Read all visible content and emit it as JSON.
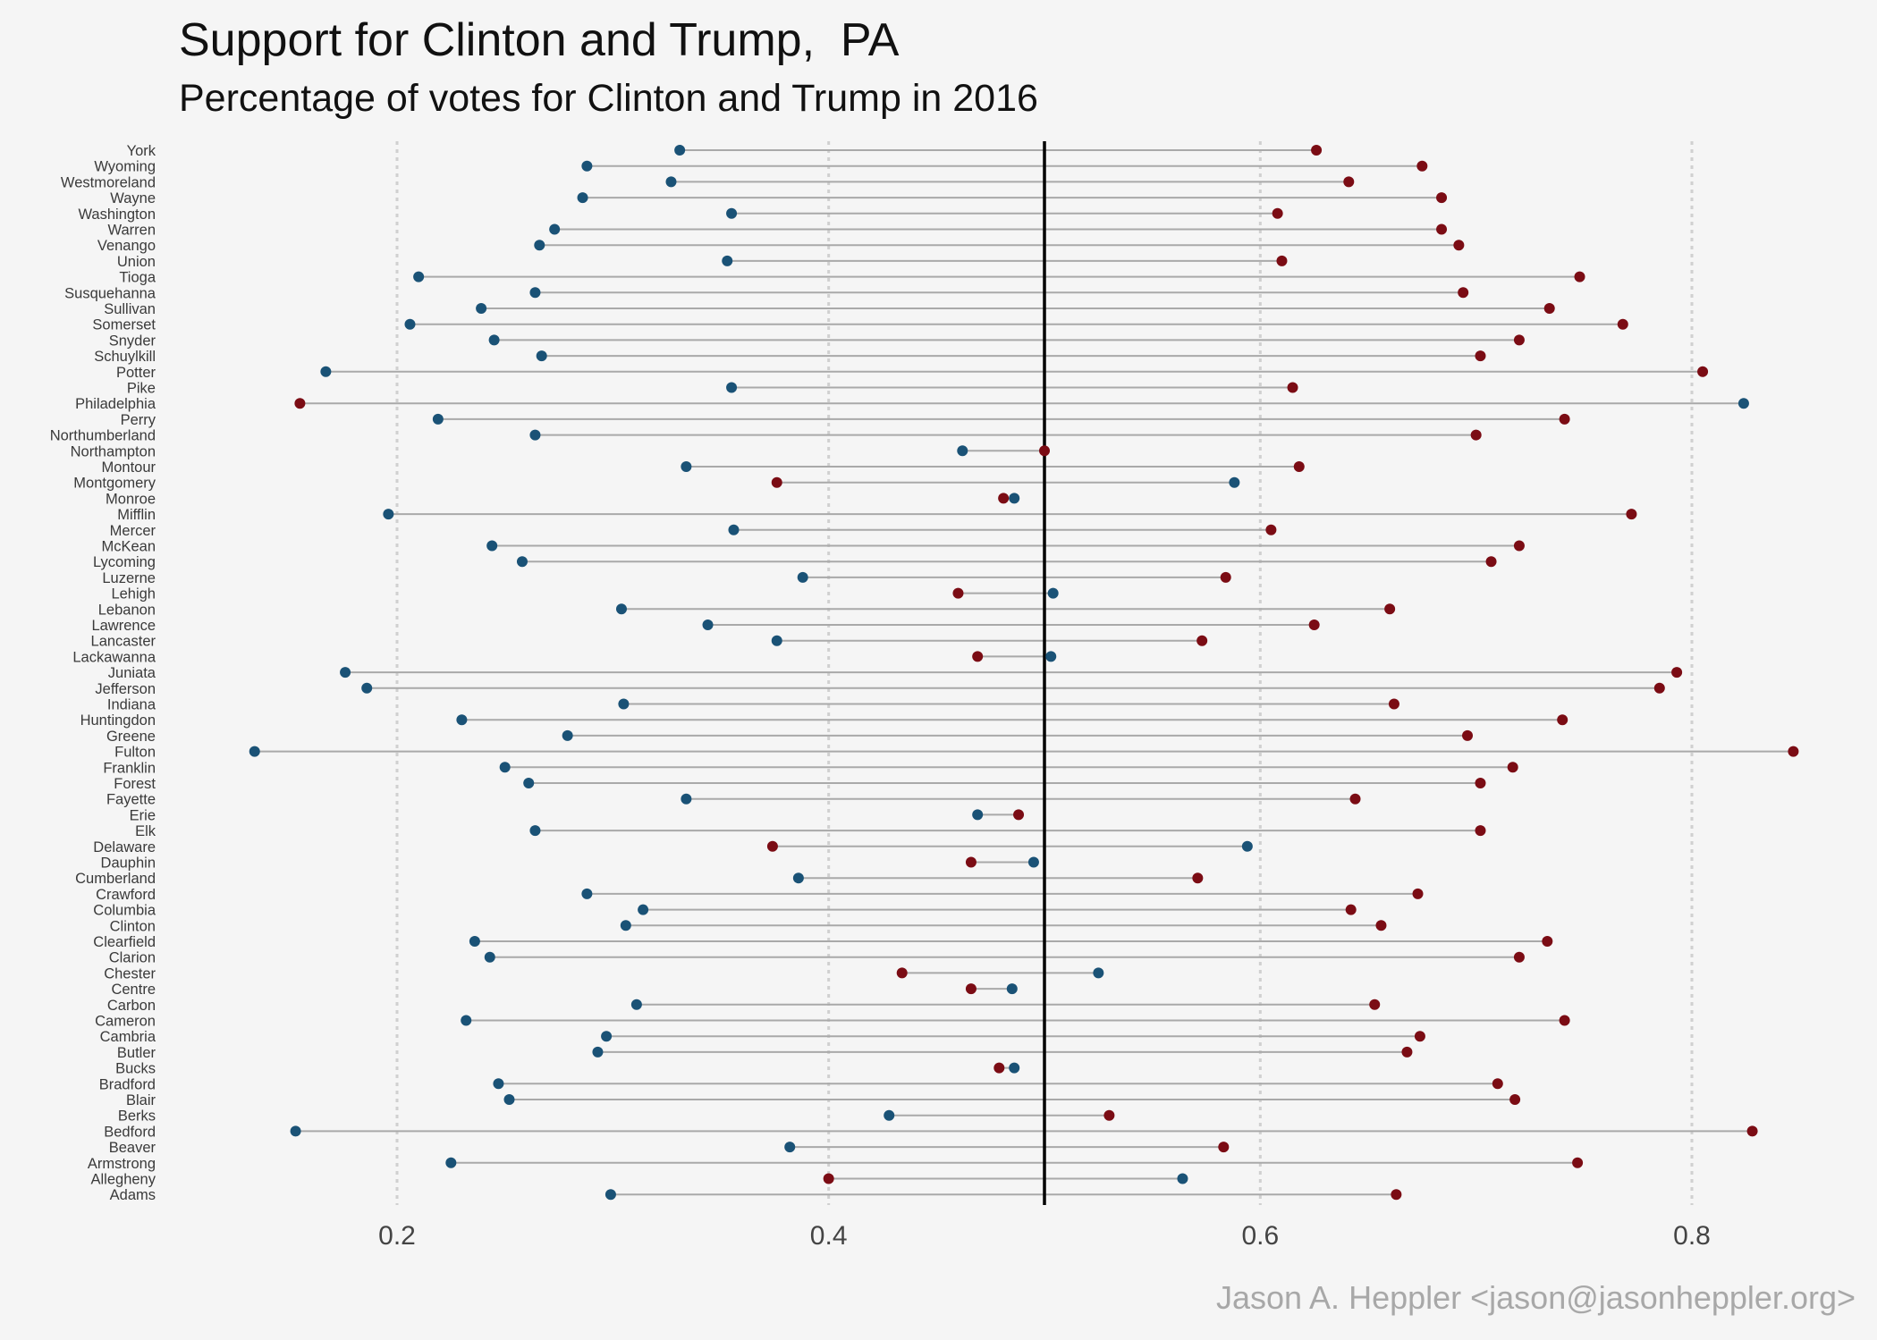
{
  "colors": {
    "background": "#f5f5f5",
    "clinton": "#1a5276",
    "trump": "#7b0c14",
    "segment": "#a9a9a9",
    "gridline": "#d0d0d0",
    "midline": "#000000"
  },
  "caption": "Jason A. Heppler <jason@jasonheppler.org>",
  "chart_data": {
    "type": "dumbbell",
    "title": "Support for Clinton and Trump,  PA",
    "subtitle": "Percentage of votes for Clinton and Trump in 2016",
    "xlabel": "",
    "ylabel": "",
    "xlim": [
      0.1,
      0.86
    ],
    "xticks": [
      {
        "value": 0.2,
        "label": "0.2"
      },
      {
        "value": 0.4,
        "label": "0.4"
      },
      {
        "value": 0.6,
        "label": "0.6"
      },
      {
        "value": 0.8,
        "label": "0.8"
      }
    ],
    "reference_line": 0.5,
    "grid": "vertical dotted at major ticks",
    "legend": "none",
    "series": [
      {
        "key": "clinton",
        "color": "#1a5276"
      },
      {
        "key": "trump",
        "color": "#7b0c14"
      }
    ],
    "counties": [
      {
        "name": "York",
        "clinton": 0.331,
        "trump": 0.626
      },
      {
        "name": "Wyoming",
        "clinton": 0.288,
        "trump": 0.675
      },
      {
        "name": "Westmoreland",
        "clinton": 0.327,
        "trump": 0.641
      },
      {
        "name": "Wayne",
        "clinton": 0.286,
        "trump": 0.684
      },
      {
        "name": "Washington",
        "clinton": 0.355,
        "trump": 0.608
      },
      {
        "name": "Warren",
        "clinton": 0.273,
        "trump": 0.684
      },
      {
        "name": "Venango",
        "clinton": 0.266,
        "trump": 0.692
      },
      {
        "name": "Union",
        "clinton": 0.353,
        "trump": 0.61
      },
      {
        "name": "Tioga",
        "clinton": 0.21,
        "trump": 0.748
      },
      {
        "name": "Susquehanna",
        "clinton": 0.264,
        "trump": 0.694
      },
      {
        "name": "Sullivan",
        "clinton": 0.239,
        "trump": 0.734
      },
      {
        "name": "Somerset",
        "clinton": 0.206,
        "trump": 0.768
      },
      {
        "name": "Snyder",
        "clinton": 0.245,
        "trump": 0.72
      },
      {
        "name": "Schuylkill",
        "clinton": 0.267,
        "trump": 0.702
      },
      {
        "name": "Potter",
        "clinton": 0.167,
        "trump": 0.805
      },
      {
        "name": "Pike",
        "clinton": 0.355,
        "trump": 0.615
      },
      {
        "name": "Philadelphia",
        "clinton": 0.824,
        "trump": 0.155
      },
      {
        "name": "Perry",
        "clinton": 0.219,
        "trump": 0.741
      },
      {
        "name": "Northumberland",
        "clinton": 0.264,
        "trump": 0.7
      },
      {
        "name": "Northampton",
        "clinton": 0.462,
        "trump": 0.5
      },
      {
        "name": "Montour",
        "clinton": 0.334,
        "trump": 0.618
      },
      {
        "name": "Montgomery",
        "clinton": 0.588,
        "trump": 0.376
      },
      {
        "name": "Monroe",
        "clinton": 0.486,
        "trump": 0.481
      },
      {
        "name": "Mifflin",
        "clinton": 0.196,
        "trump": 0.772
      },
      {
        "name": "Mercer",
        "clinton": 0.356,
        "trump": 0.605
      },
      {
        "name": "McKean",
        "clinton": 0.244,
        "trump": 0.72
      },
      {
        "name": "Lycoming",
        "clinton": 0.258,
        "trump": 0.707
      },
      {
        "name": "Luzerne",
        "clinton": 0.388,
        "trump": 0.584
      },
      {
        "name": "Lehigh",
        "clinton": 0.504,
        "trump": 0.46
      },
      {
        "name": "Lebanon",
        "clinton": 0.304,
        "trump": 0.66
      },
      {
        "name": "Lawrence",
        "clinton": 0.344,
        "trump": 0.625
      },
      {
        "name": "Lancaster",
        "clinton": 0.376,
        "trump": 0.573
      },
      {
        "name": "Lackawanna",
        "clinton": 0.503,
        "trump": 0.469
      },
      {
        "name": "Juniata",
        "clinton": 0.176,
        "trump": 0.793
      },
      {
        "name": "Jefferson",
        "clinton": 0.186,
        "trump": 0.785
      },
      {
        "name": "Indiana",
        "clinton": 0.305,
        "trump": 0.662
      },
      {
        "name": "Huntingdon",
        "clinton": 0.23,
        "trump": 0.74
      },
      {
        "name": "Greene",
        "clinton": 0.279,
        "trump": 0.696
      },
      {
        "name": "Fulton",
        "clinton": 0.134,
        "trump": 0.847
      },
      {
        "name": "Franklin",
        "clinton": 0.25,
        "trump": 0.717
      },
      {
        "name": "Forest",
        "clinton": 0.261,
        "trump": 0.702
      },
      {
        "name": "Fayette",
        "clinton": 0.334,
        "trump": 0.644
      },
      {
        "name": "Erie",
        "clinton": 0.469,
        "trump": 0.488
      },
      {
        "name": "Elk",
        "clinton": 0.264,
        "trump": 0.702
      },
      {
        "name": "Delaware",
        "clinton": 0.594,
        "trump": 0.374
      },
      {
        "name": "Dauphin",
        "clinton": 0.495,
        "trump": 0.466
      },
      {
        "name": "Cumberland",
        "clinton": 0.386,
        "trump": 0.571
      },
      {
        "name": "Crawford",
        "clinton": 0.288,
        "trump": 0.673
      },
      {
        "name": "Columbia",
        "clinton": 0.314,
        "trump": 0.642
      },
      {
        "name": "Clinton",
        "clinton": 0.306,
        "trump": 0.656
      },
      {
        "name": "Clearfield",
        "clinton": 0.236,
        "trump": 0.733
      },
      {
        "name": "Clarion",
        "clinton": 0.243,
        "trump": 0.72
      },
      {
        "name": "Chester",
        "clinton": 0.525,
        "trump": 0.434
      },
      {
        "name": "Centre",
        "clinton": 0.485,
        "trump": 0.466
      },
      {
        "name": "Carbon",
        "clinton": 0.311,
        "trump": 0.653
      },
      {
        "name": "Cameron",
        "clinton": 0.232,
        "trump": 0.741
      },
      {
        "name": "Cambria",
        "clinton": 0.297,
        "trump": 0.674
      },
      {
        "name": "Butler",
        "clinton": 0.293,
        "trump": 0.668
      },
      {
        "name": "Bucks",
        "clinton": 0.486,
        "trump": 0.479
      },
      {
        "name": "Bradford",
        "clinton": 0.247,
        "trump": 0.71
      },
      {
        "name": "Blair",
        "clinton": 0.252,
        "trump": 0.718
      },
      {
        "name": "Berks",
        "clinton": 0.428,
        "trump": 0.53
      },
      {
        "name": "Bedford",
        "clinton": 0.153,
        "trump": 0.828
      },
      {
        "name": "Beaver",
        "clinton": 0.382,
        "trump": 0.583
      },
      {
        "name": "Armstrong",
        "clinton": 0.225,
        "trump": 0.747
      },
      {
        "name": "Allegheny",
        "clinton": 0.564,
        "trump": 0.4
      },
      {
        "name": "Adams",
        "clinton": 0.299,
        "trump": 0.663
      }
    ]
  }
}
